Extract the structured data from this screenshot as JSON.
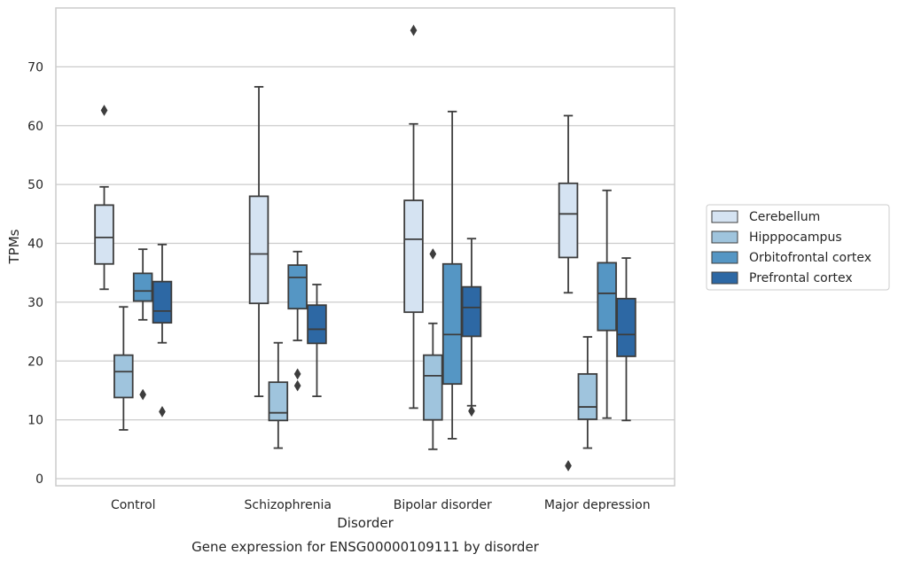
{
  "chart_data": {
    "type": "box",
    "xlabel": "Disorder",
    "ylabel": "TPMs",
    "caption": "Gene expression for ENSG00000109111 by disorder",
    "ylim": [
      -1.2,
      80
    ],
    "yticks": [
      0,
      10,
      20,
      30,
      40,
      50,
      60,
      70
    ],
    "grid": "horizontal",
    "legend_placement": "right",
    "categories": [
      "Control",
      "Schizophrenia",
      "Bipolar disorder",
      "Major depression"
    ],
    "series": [
      {
        "name": "Cerebellum",
        "color": "#d5e3f2",
        "boxes": [
          {
            "whislo": 32.2,
            "q1": 36.5,
            "med": 41.0,
            "q3": 46.5,
            "whishi": 49.6,
            "fliers": [
              62.6
            ]
          },
          {
            "whislo": 14.0,
            "q1": 29.8,
            "med": 38.2,
            "q3": 48.0,
            "whishi": 66.6,
            "fliers": []
          },
          {
            "whislo": 12.0,
            "q1": 28.3,
            "med": 40.7,
            "q3": 47.3,
            "whishi": 60.3,
            "fliers": [
              76.2
            ]
          },
          {
            "whislo": 31.6,
            "q1": 37.6,
            "med": 45.0,
            "q3": 50.2,
            "whishi": 61.7,
            "fliers": [
              2.2
            ]
          }
        ]
      },
      {
        "name": "Hipppocampus",
        "color": "#9fc4dd",
        "boxes": [
          {
            "whislo": 8.3,
            "q1": 13.8,
            "med": 18.2,
            "q3": 21.0,
            "whishi": 29.2,
            "fliers": []
          },
          {
            "whislo": 5.2,
            "q1": 9.9,
            "med": 11.2,
            "q3": 16.4,
            "whishi": 23.1,
            "fliers": []
          },
          {
            "whislo": 5.0,
            "q1": 10.0,
            "med": 17.5,
            "q3": 21.0,
            "whishi": 26.4,
            "fliers": [
              38.2
            ]
          },
          {
            "whislo": 5.2,
            "q1": 10.1,
            "med": 12.2,
            "q3": 17.8,
            "whishi": 24.1,
            "fliers": []
          }
        ]
      },
      {
        "name": "Orbitofrontal cortex",
        "color": "#5596c4",
        "boxes": [
          {
            "whislo": 27.0,
            "q1": 30.2,
            "med": 31.9,
            "q3": 34.9,
            "whishi": 39.0,
            "fliers": [
              14.3
            ]
          },
          {
            "whislo": 23.5,
            "q1": 28.9,
            "med": 34.2,
            "q3": 36.3,
            "whishi": 38.6,
            "fliers": [
              17.8,
              15.8
            ]
          },
          {
            "whislo": 6.8,
            "q1": 16.1,
            "med": 24.5,
            "q3": 36.5,
            "whishi": 62.4,
            "fliers": []
          },
          {
            "whislo": 10.3,
            "q1": 25.2,
            "med": 31.5,
            "q3": 36.7,
            "whishi": 49.0,
            "fliers": []
          }
        ]
      },
      {
        "name": "Prefrontal cortex",
        "color": "#2d68a4",
        "boxes": [
          {
            "whislo": 23.1,
            "q1": 26.5,
            "med": 28.5,
            "q3": 33.5,
            "whishi": 39.8,
            "fliers": [
              11.4
            ]
          },
          {
            "whislo": 14.0,
            "q1": 23.0,
            "med": 25.4,
            "q3": 29.5,
            "whishi": 33.0,
            "fliers": []
          },
          {
            "whislo": 12.4,
            "q1": 24.2,
            "med": 29.1,
            "q3": 32.6,
            "whishi": 40.8,
            "fliers": [
              11.5
            ]
          },
          {
            "whislo": 9.9,
            "q1": 20.8,
            "med": 24.5,
            "q3": 30.6,
            "whishi": 37.5,
            "fliers": []
          }
        ]
      }
    ]
  }
}
